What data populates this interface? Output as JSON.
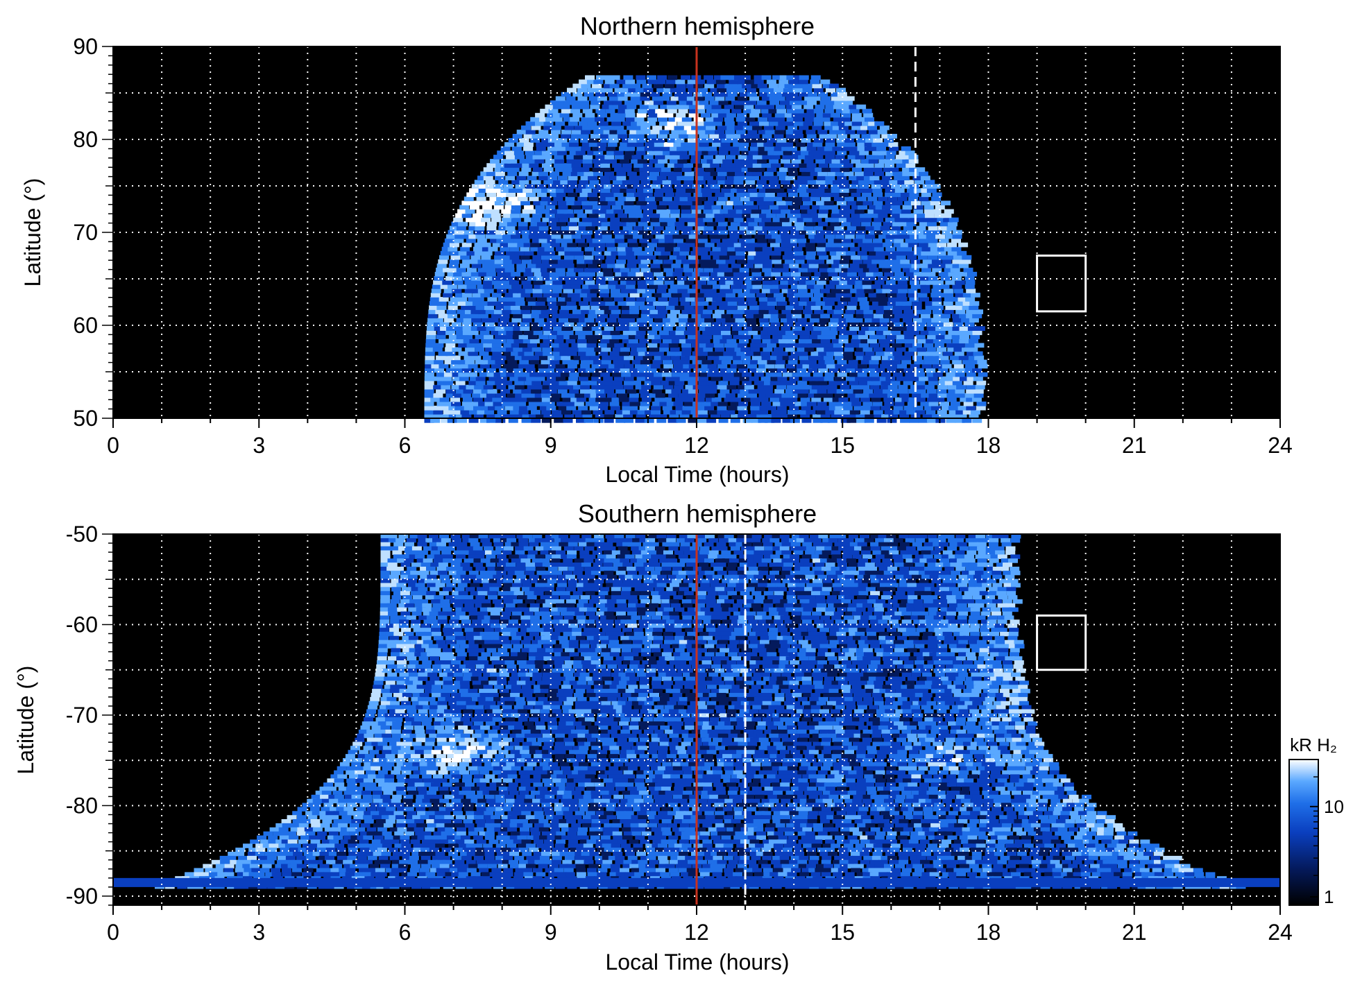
{
  "colors": {
    "background": "#000000",
    "noon_line": "#c8321e",
    "grid": "#ffffff",
    "box": "#ffffff",
    "colormap": [
      "#000000",
      "#041a5c",
      "#0a3fbf",
      "#1f6fe8",
      "#5aa8ff",
      "#bfe0ff",
      "#ffffff"
    ]
  },
  "chart_data": [
    {
      "type": "heatmap",
      "title": "Northern hemisphere",
      "xlabel": "Local Time (hours)",
      "ylabel": "Latitude (°)",
      "xlim": [
        0,
        24
      ],
      "ylim": [
        50,
        90
      ],
      "xticks": [
        0,
        3,
        6,
        9,
        12,
        15,
        18,
        21,
        24
      ],
      "yticks": [
        50,
        60,
        70,
        80,
        90
      ],
      "grid": true,
      "noon_line_x": 12,
      "dashed_line_x": 16.5,
      "box": {
        "x0": 19,
        "x1": 20,
        "y0": 61.5,
        "y1": 67.5
      },
      "coverage": {
        "x_min": 6.4,
        "x_max": 17.8,
        "max_latitude": 87
      },
      "bright_regions": [
        {
          "x": 7.8,
          "y": 73,
          "level": "high"
        },
        {
          "x": 11.5,
          "y": 82,
          "level": "high"
        }
      ]
    },
    {
      "type": "heatmap",
      "title": "Southern hemisphere",
      "xlabel": "Local Time (hours)",
      "ylabel": "Latitude (°)",
      "xlim": [
        0,
        24
      ],
      "ylim": [
        -91,
        -50
      ],
      "xticks": [
        0,
        3,
        6,
        9,
        12,
        15,
        18,
        21,
        24
      ],
      "yticks": [
        -50,
        -60,
        -70,
        -80,
        -90
      ],
      "grid": true,
      "noon_line_x": 12,
      "dashed_line_x": 13,
      "box": {
        "x0": 19,
        "x1": 20,
        "y0": -65,
        "y1": -59
      },
      "coverage": {
        "x_min": 5.5,
        "x_max": 18.5,
        "max_latitude": -50
      },
      "bright_regions": [
        {
          "x": 7.0,
          "y": -73.5,
          "level": "high"
        },
        {
          "x": 17.0,
          "y": -74,
          "level": "medium"
        }
      ]
    }
  ],
  "colorbar": {
    "label": "kR H₂",
    "ticks": [
      1,
      10
    ],
    "scale": "log"
  }
}
